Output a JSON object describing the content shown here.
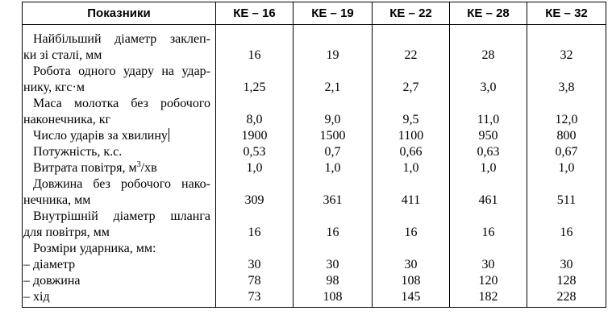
{
  "table": {
    "header": {
      "label": "Показники",
      "models": [
        "КЕ – 16",
        "КЕ – 19",
        "КЕ – 22",
        "КЕ – 28",
        "КЕ – 32"
      ]
    },
    "rows": [
      {
        "label_lines": [
          "Найбільший діаметр заклеп-",
          "ки зі сталі, мм"
        ],
        "values": [
          "16",
          "19",
          "22",
          "28",
          "32"
        ]
      },
      {
        "label_lines": [
          "Робота одного удару на удар-",
          "нику, кгс·м"
        ],
        "values": [
          "1,25",
          "2,1",
          "2,7",
          "3,0",
          "3,8"
        ]
      },
      {
        "label_lines": [
          "Маса молотка без робочого",
          "наконечника, кг"
        ],
        "values": [
          "8,0",
          "9,0",
          "9,5",
          "11,0",
          "12,0"
        ]
      },
      {
        "label_lines": [
          "Число ударів за хвилину"
        ],
        "values": [
          "1900",
          "1500",
          "1100",
          "950",
          "800"
        ]
      },
      {
        "label_lines": [
          "Потужність, к.с."
        ],
        "values": [
          "0,53",
          "0,7",
          "0,66",
          "0,63",
          "0,67"
        ]
      },
      {
        "label_lines": [
          "Витрата повітря, м"
        ],
        "label_sup": "3",
        "label_suffix": "/хв",
        "values": [
          "1,0",
          "1,0",
          "1,0",
          "1,0",
          "1,0"
        ]
      },
      {
        "label_lines": [
          "Довжина без робочого нако-",
          "нечника, мм"
        ],
        "values": [
          "309",
          "361",
          "411",
          "461",
          "511"
        ]
      },
      {
        "label_lines": [
          "Внутрішній діаметр шланга",
          "для повітря, мм"
        ],
        "values": [
          "16",
          "16",
          "16",
          "16",
          "16"
        ]
      },
      {
        "label_lines": [
          "Розміри ударника, мм:",
          "– діаметр"
        ],
        "values": [
          "30",
          "30",
          "30",
          "30",
          "30"
        ]
      },
      {
        "label_lines": [
          "– довжина"
        ],
        "values": [
          "78",
          "98",
          "108",
          "120",
          "128"
        ]
      },
      {
        "label_lines": [
          "– хід"
        ],
        "values": [
          "73",
          "108",
          "145",
          "182",
          "228"
        ]
      }
    ]
  }
}
